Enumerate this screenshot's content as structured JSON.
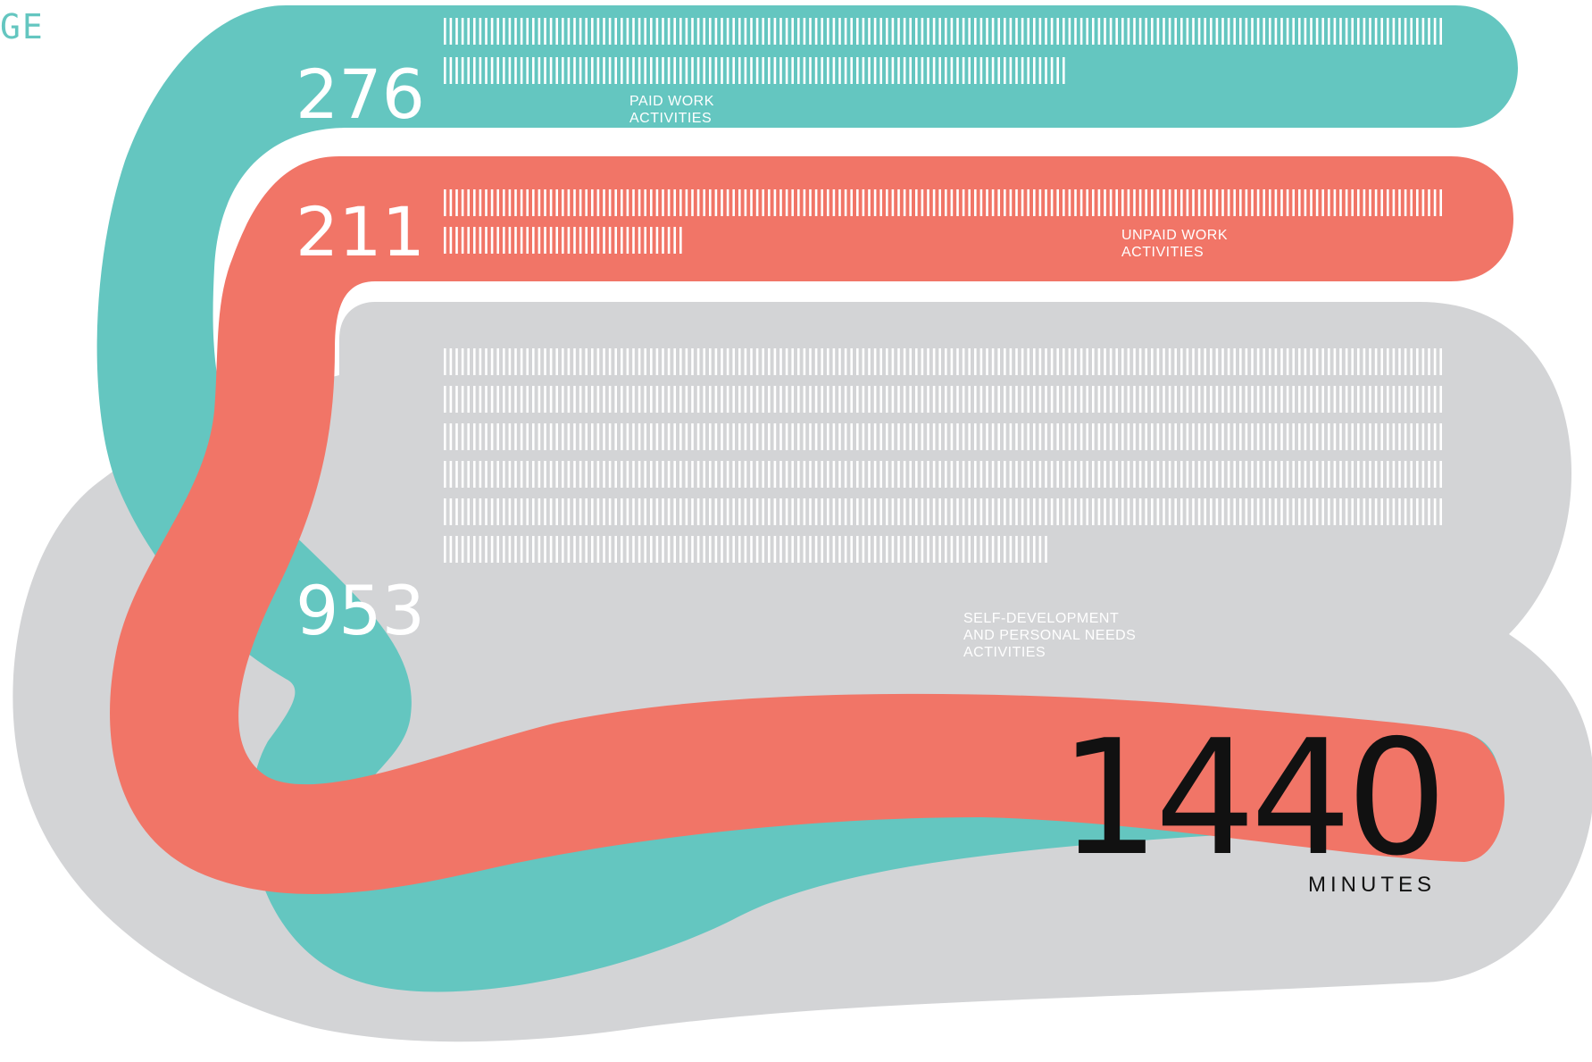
{
  "header_fragment": "GE",
  "colors": {
    "paid": "#64c6c0",
    "unpaid": "#f17567",
    "self": "#d3d4d6",
    "tick": "#ffffff",
    "total_text": "#111111",
    "header_text": "#64c6c0"
  },
  "chart_data": {
    "type": "bar",
    "unit_ticks_per_row": 170,
    "categories": [
      "PAID WORK ACTIVITIES",
      "UNPAID WORK ACTIVITIES",
      "SELF-DEVELOPMENT AND PERSONAL NEEDS ACTIVITIES"
    ],
    "values": [
      276,
      211,
      953
    ],
    "series": [
      {
        "value_label": "276",
        "label_lines": [
          "PAID WORK",
          "ACTIVITIES"
        ],
        "color": "#64c6c0"
      },
      {
        "value_label": "211",
        "label_lines": [
          "UNPAID WORK",
          "ACTIVITIES"
        ],
        "color": "#f17567"
      },
      {
        "value_label": "953",
        "label_lines": [
          "SELF-DEVELOPMENT",
          "AND PERSONAL NEEDS",
          "ACTIVITIES"
        ],
        "color": "#d3d4d6"
      }
    ],
    "total": {
      "value": 1440,
      "label": "1440",
      "unit": "MINUTES"
    }
  }
}
